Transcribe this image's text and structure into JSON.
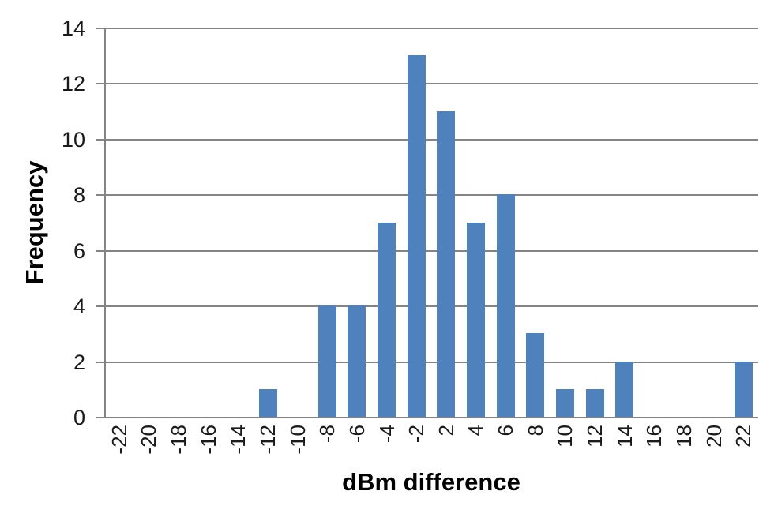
{
  "chart_data": {
    "type": "bar",
    "title": "",
    "xlabel": "dBm difference",
    "ylabel": "Frequency",
    "categories": [
      "-22",
      "-20",
      "-18",
      "-16",
      "-14",
      "-12",
      "-10",
      "-8",
      "-6",
      "-4",
      "-2",
      "2",
      "4",
      "6",
      "8",
      "10",
      "12",
      "14",
      "16",
      "18",
      "20",
      "22"
    ],
    "values": [
      0,
      0,
      0,
      0,
      0,
      1,
      0,
      4,
      4,
      7,
      13,
      11,
      7,
      8,
      3,
      1,
      1,
      2,
      0,
      0,
      0,
      2
    ],
    "ylim": [
      0,
      14
    ],
    "ytick_step": 2,
    "yticks": [
      0,
      2,
      4,
      6,
      8,
      10,
      12,
      14
    ],
    "grid": true,
    "legend": false,
    "x_label_rotation": -90,
    "bar_color": "#4f81bd",
    "gridline_color": "#848484",
    "axis_color": "#848484",
    "text_color": "#1a1a1a",
    "background_color": "#ffffff"
  }
}
